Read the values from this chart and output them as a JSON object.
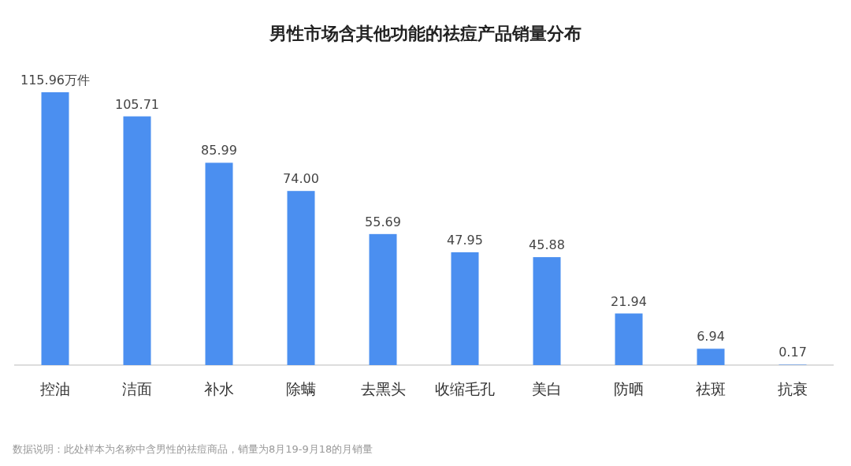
{
  "chart_data": {
    "type": "bar",
    "title": "男性市场含其他功能的祛痘产品销量分布",
    "categories": [
      "控油",
      "洁面",
      "补水",
      "除螨",
      "去黑头",
      "收缩毛孔",
      "美白",
      "防晒",
      "祛斑",
      "抗衰"
    ],
    "values": [
      115.96,
      105.71,
      85.99,
      74.0,
      55.69,
      47.95,
      45.88,
      21.94,
      6.94,
      0.17
    ],
    "value_labels": [
      "115.96万件",
      "105.71",
      "85.99",
      "74.00",
      "55.69",
      "47.95",
      "45.88",
      "21.94",
      "6.94",
      "0.17"
    ],
    "color": "#4b8ff0",
    "annotations": [
      "数据说明：此处样本为名称中含男性的祛痘商品，销量为8月19-9月18的月销量"
    ]
  }
}
